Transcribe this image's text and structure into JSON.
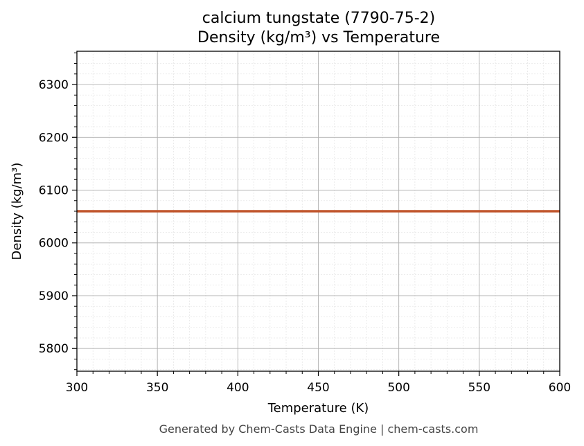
{
  "chart_data": {
    "type": "line",
    "title_line1": "calcium tungstate (7790-75-2)",
    "title_line2": "Density (kg/m³) vs Temperature",
    "xlabel": "Temperature (K)",
    "ylabel": "Density (kg/m³)",
    "xlim": [
      300,
      600
    ],
    "ylim": [
      5757,
      6363
    ],
    "x_ticks": [
      300,
      350,
      400,
      450,
      500,
      550,
      600
    ],
    "y_ticks": [
      5800,
      5900,
      6000,
      6100,
      6200,
      6300
    ],
    "x_minor_step": 10,
    "y_minor_step": 20,
    "grid": true,
    "minor_grid": true,
    "series": [
      {
        "x": [
          300,
          600
        ],
        "y": [
          6060,
          6060
        ],
        "color": "#c0542a"
      }
    ]
  },
  "footer": "Generated by Chem-Casts Data Engine | chem-casts.com",
  "colors": {
    "major_grid": "#b0b0b0",
    "minor_grid": "#e6e6e6",
    "axis": "#000000"
  }
}
